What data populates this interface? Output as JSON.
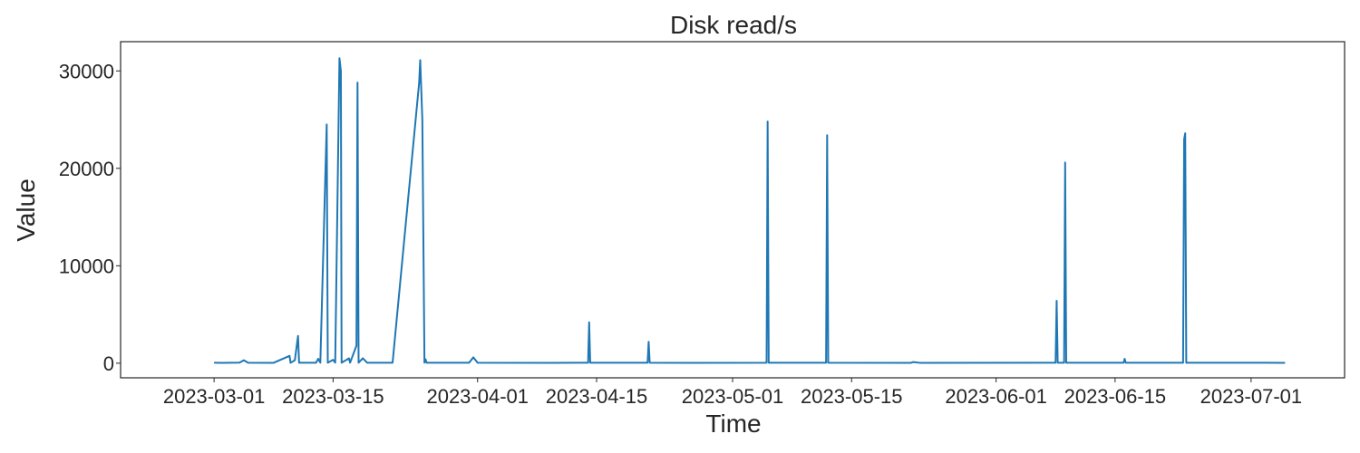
{
  "chart_data": {
    "type": "line",
    "title": "Disk read/s",
    "xlabel": "Time",
    "ylabel": "Value",
    "xlim": [
      "2023-02-18",
      "2023-07-12"
    ],
    "ylim": [
      -1500,
      33000
    ],
    "xticks": [
      "2023-03-01",
      "2023-03-15",
      "2023-04-01",
      "2023-04-15",
      "2023-05-01",
      "2023-05-15",
      "2023-06-01",
      "2023-06-15",
      "2023-07-01"
    ],
    "yticks": [
      0,
      10000,
      20000,
      30000
    ],
    "grid": false,
    "line_color": "#1f77b4",
    "series": [
      {
        "points": [
          [
            "2023-03-01",
            50
          ],
          [
            "2023-03-02",
            40
          ],
          [
            "2023-03-04",
            60
          ],
          [
            "2023-03-04 12:00",
            300
          ],
          [
            "2023-03-05",
            50
          ],
          [
            "2023-03-08",
            40
          ],
          [
            "2023-03-09 21:00",
            750
          ],
          [
            "2023-03-10",
            40
          ],
          [
            "2023-03-10 12:00",
            300
          ],
          [
            "2023-03-10 21:00",
            2800
          ],
          [
            "2023-03-11",
            50
          ],
          [
            "2023-03-13",
            50
          ],
          [
            "2023-03-13 06:00",
            450
          ],
          [
            "2023-03-13 12:00",
            50
          ],
          [
            "2023-03-14 06:00",
            24500
          ],
          [
            "2023-03-14 09:00",
            50
          ],
          [
            "2023-03-15",
            350
          ],
          [
            "2023-03-15 06:00",
            50
          ],
          [
            "2023-03-15 18:00",
            31300
          ],
          [
            "2023-03-15 22:00",
            30000
          ],
          [
            "2023-03-16",
            50
          ],
          [
            "2023-03-16 21:00",
            500
          ],
          [
            "2023-03-17",
            50
          ],
          [
            "2023-03-17 18:00",
            1800
          ],
          [
            "2023-03-17 21:00",
            28800
          ],
          [
            "2023-03-18",
            50
          ],
          [
            "2023-03-18 12:00",
            500
          ],
          [
            "2023-03-19",
            50
          ],
          [
            "2023-03-22",
            50
          ],
          [
            "2023-03-25 03:00",
            28800
          ],
          [
            "2023-03-25 06:00",
            31100
          ],
          [
            "2023-03-25 12:00",
            25000
          ],
          [
            "2023-03-25 18:00",
            50
          ],
          [
            "2023-03-25 21:00",
            400
          ],
          [
            "2023-03-26",
            50
          ],
          [
            "2023-03-31",
            50
          ],
          [
            "2023-03-31 12:00",
            600
          ],
          [
            "2023-04-01",
            50
          ],
          [
            "2023-04-10",
            40
          ],
          [
            "2023-04-14",
            50
          ],
          [
            "2023-04-14 03:00",
            4200
          ],
          [
            "2023-04-14 06:00",
            50
          ],
          [
            "2023-04-21",
            50
          ],
          [
            "2023-04-21 03:00",
            2200
          ],
          [
            "2023-04-21 06:00",
            50
          ],
          [
            "2023-04-26",
            40
          ],
          [
            "2023-05-05",
            50
          ],
          [
            "2023-05-05 03:00",
            24800
          ],
          [
            "2023-05-05 06:00",
            50
          ],
          [
            "2023-05-12",
            50
          ],
          [
            "2023-05-12 03:00",
            23400
          ],
          [
            "2023-05-12 06:00",
            50
          ],
          [
            "2023-05-22",
            40
          ],
          [
            "2023-05-22 06:00",
            120
          ],
          [
            "2023-05-23",
            40
          ],
          [
            "2023-06-08",
            50
          ],
          [
            "2023-06-08 03:00",
            6400
          ],
          [
            "2023-06-08 06:00",
            50
          ],
          [
            "2023-06-09",
            50
          ],
          [
            "2023-06-09 03:00",
            20600
          ],
          [
            "2023-06-09 06:00",
            50
          ],
          [
            "2023-06-16",
            50
          ],
          [
            "2023-06-16 03:00",
            450
          ],
          [
            "2023-06-16 06:00",
            50
          ],
          [
            "2023-06-23",
            50
          ],
          [
            "2023-06-23 03:00",
            23000
          ],
          [
            "2023-06-23 06:00",
            23600
          ],
          [
            "2023-06-23 09:00",
            50
          ],
          [
            "2023-07-05",
            40
          ]
        ]
      }
    ]
  }
}
